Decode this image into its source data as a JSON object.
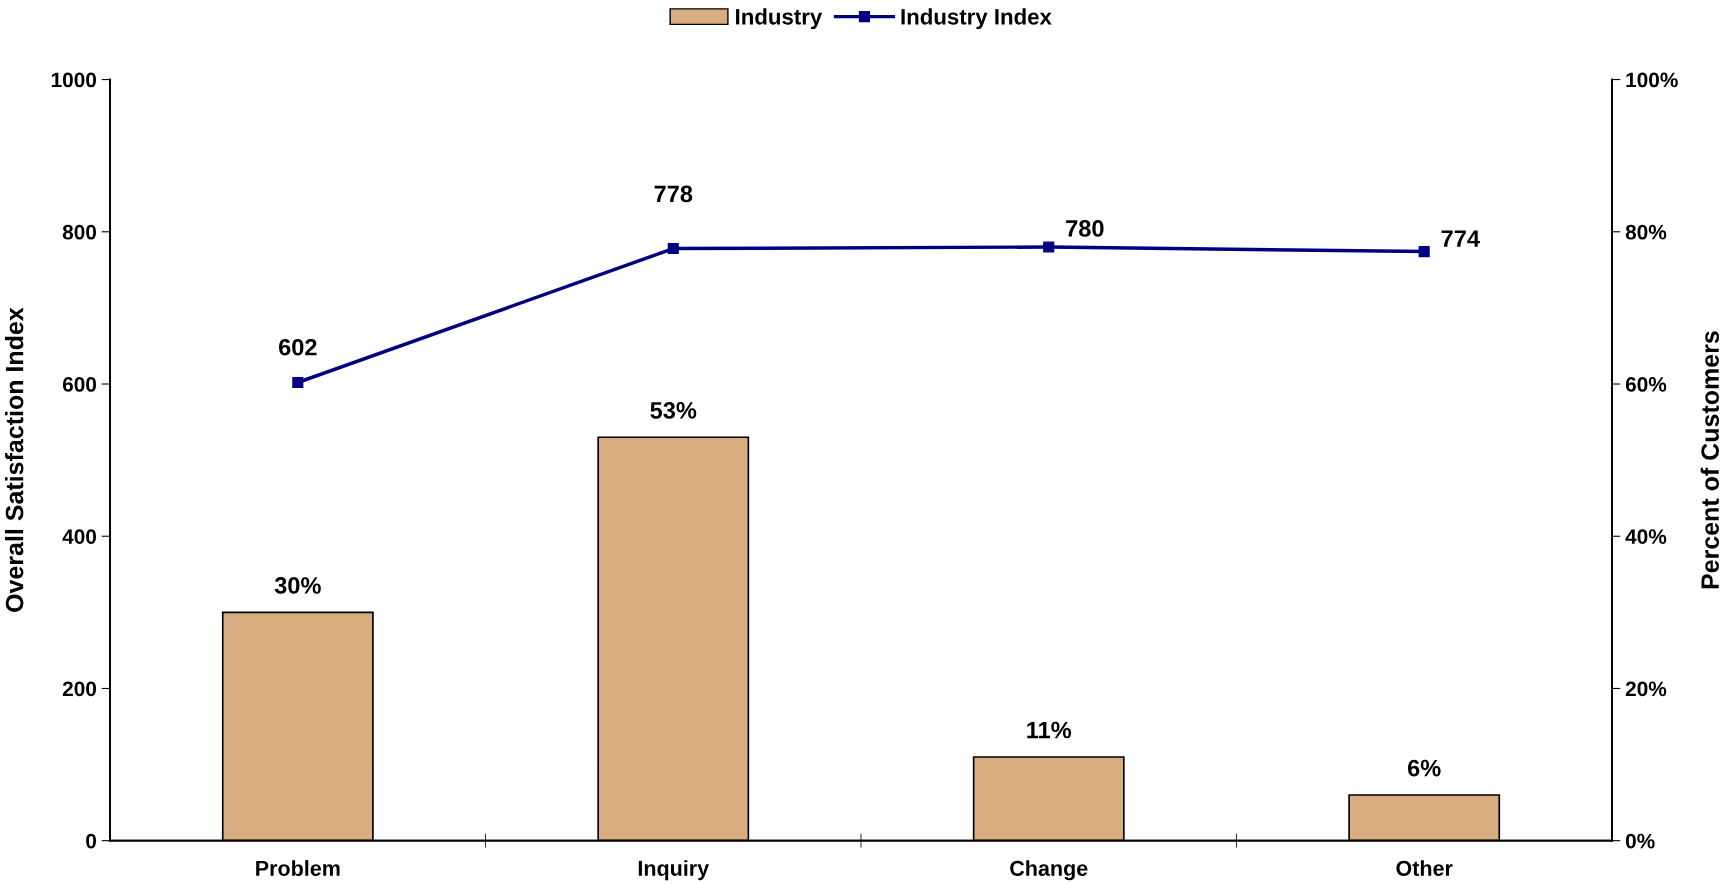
{
  "chart_data": {
    "type": "bar",
    "categories": [
      "Problem",
      "Inquiry",
      "Change",
      "Other"
    ],
    "ylabel": "Overall Satisfaction Index",
    "y2label": "Percent of Customers",
    "ylim": [
      0,
      1000
    ],
    "yticks": [
      0,
      200,
      400,
      600,
      800,
      1000
    ],
    "y2lim": [
      0,
      100
    ],
    "y2ticks": [
      {
        "value": 0,
        "label": "0%"
      },
      {
        "value": 20,
        "label": "20%"
      },
      {
        "value": 40,
        "label": "40%"
      },
      {
        "value": 60,
        "label": "60%"
      },
      {
        "value": 80,
        "label": "80%"
      },
      {
        "value": 100,
        "label": "100%"
      }
    ],
    "series": [
      {
        "name": "Industry",
        "axis": "y2",
        "color": "#d9ad80",
        "values": [
          30,
          53,
          11,
          6
        ],
        "value_labels": [
          "30%",
          "53%",
          "11%",
          "6%"
        ]
      },
      {
        "name": "Industry Index",
        "type": "line",
        "color": "#000080",
        "values": [
          602,
          778,
          780,
          774
        ],
        "value_labels": [
          "602",
          "778",
          "780",
          "774"
        ]
      }
    ],
    "marker": "square",
    "line_style": "solid",
    "legend": "top"
  }
}
